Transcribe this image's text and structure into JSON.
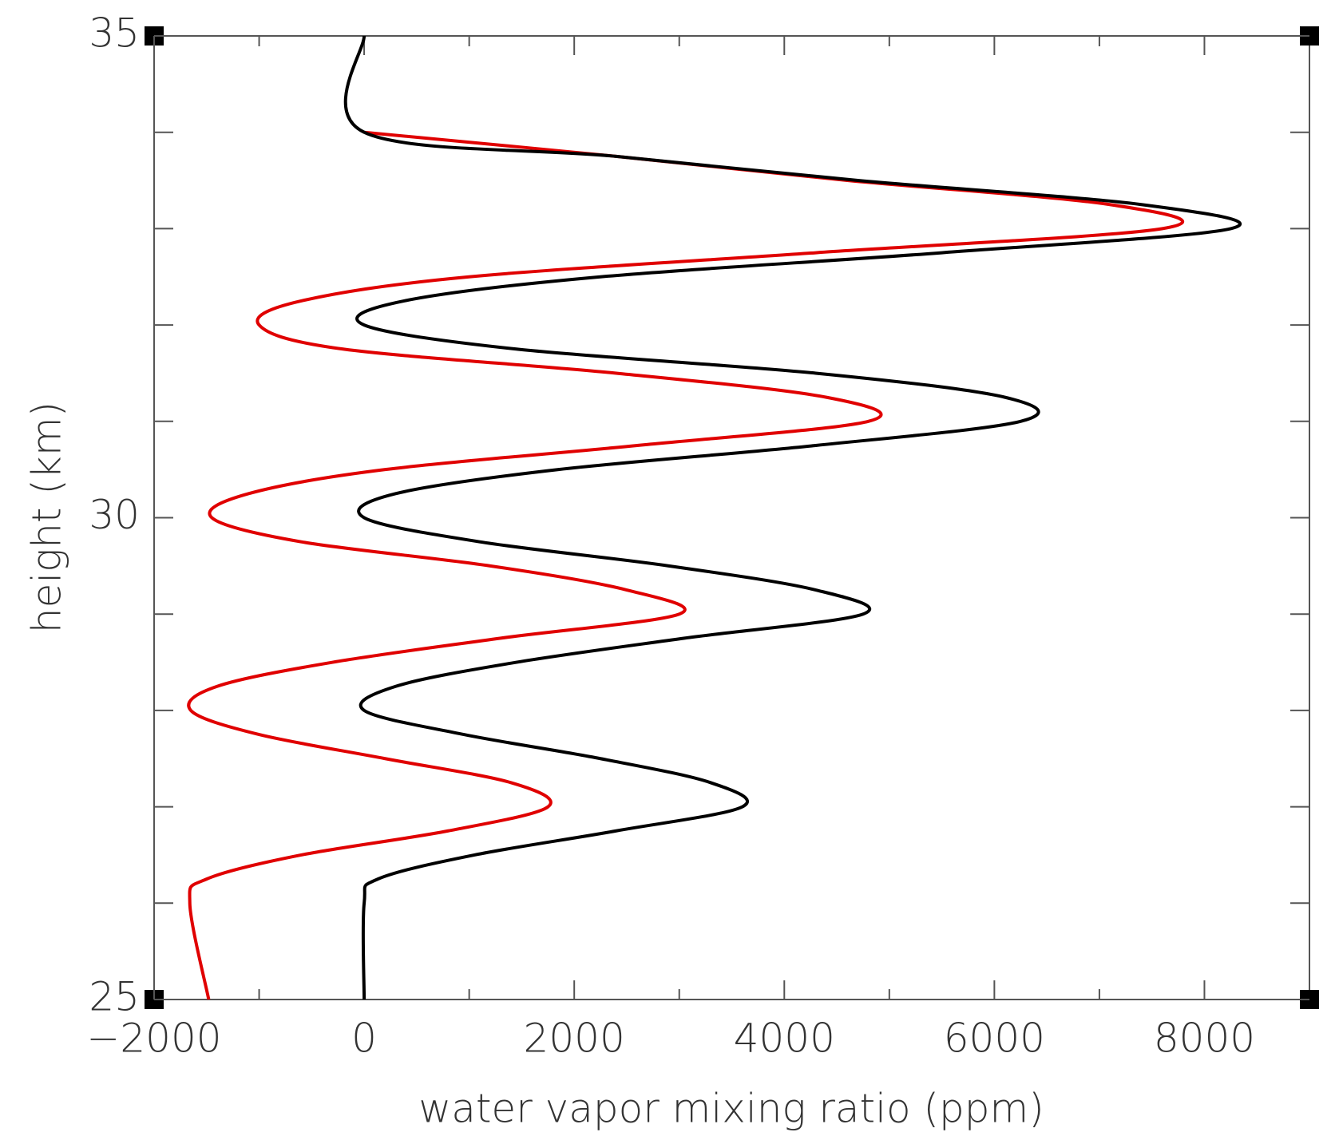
{
  "chart_data": {
    "type": "line",
    "orientation": "vertical-profile",
    "x_label": "water vapor mixing ratio (ppm)",
    "y_label": "height (km)",
    "xlim": [
      -2000,
      9000
    ],
    "ylim": [
      25,
      35
    ],
    "xticks": [
      {
        "value": -2000,
        "label": "−2000"
      },
      0,
      2000,
      4000,
      6000,
      8000
    ],
    "xminor_ticks": [
      -1000,
      1000,
      3000,
      5000,
      7000
    ],
    "yticks": [
      25,
      30,
      35
    ],
    "yminor_ticks": [
      26,
      27,
      28,
      29,
      31,
      32,
      33,
      34
    ],
    "y": [
      35,
      34,
      33.75,
      33.5,
      33.25,
      33,
      32.75,
      32.5,
      32.25,
      32,
      31.75,
      31.5,
      31.25,
      31,
      30.75,
      30.5,
      30.25,
      30,
      29.75,
      29.5,
      29.25,
      29,
      28.75,
      28.5,
      28.25,
      28,
      27.75,
      27.5,
      27.25,
      27,
      26.75,
      26.5,
      26.25,
      26,
      25
    ],
    "series": [
      {
        "color": "#e00000",
        "values": [
          null,
          0,
          2400,
          4600,
          7100,
          7600,
          4300,
          1000,
          -600,
          -1000,
          -200,
          2400,
          4400,
          4800,
          2600,
          200,
          -1100,
          -1450,
          -600,
          1200,
          2500,
          3000,
          1300,
          -300,
          -1400,
          -1650,
          -1000,
          200,
          1400,
          1750,
          800,
          -600,
          -1500,
          -1660,
          -1480
        ]
      },
      {
        "color": "#000000",
        "values": [
          0,
          0,
          2400,
          4700,
          7400,
          8250,
          5500,
          2250,
          380,
          0,
          1450,
          4300,
          6100,
          6250,
          4300,
          1850,
          300,
          0,
          1100,
          2900,
          4300,
          4750,
          3050,
          1450,
          300,
          0,
          950,
          2250,
          3300,
          3600,
          2400,
          1050,
          130,
          0,
          0
        ]
      }
    ]
  }
}
